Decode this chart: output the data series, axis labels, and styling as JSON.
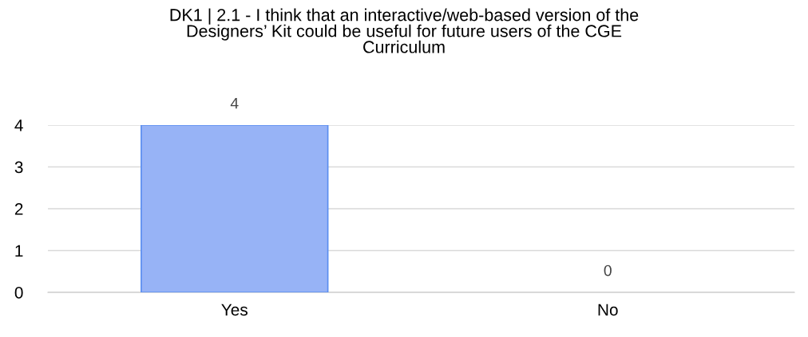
{
  "chart_data": {
    "type": "bar",
    "title": "DK1 | 2.1 - I think that an interactive/web-based version of the\nDesigners’ Kit could be useful for future users of the CGE\nCurriculum",
    "categories": [
      "Yes",
      "No"
    ],
    "values": [
      4,
      0
    ],
    "color": "#97b3f6",
    "ylim": [
      0,
      4
    ],
    "yticks": [
      0,
      1,
      2,
      3,
      4
    ],
    "grid": "y",
    "data_labels": true,
    "legend": false
  }
}
